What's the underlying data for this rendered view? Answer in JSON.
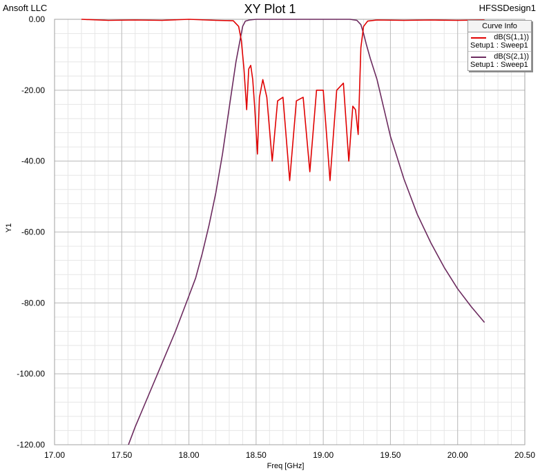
{
  "header": {
    "company": "Ansoft LLC",
    "title": "XY Plot 1",
    "design": "HFSSDesign1"
  },
  "legend": {
    "title": "Curve Info",
    "items": [
      {
        "name": "dB(S(1,1))",
        "setup": "Setup1 : Sweep1",
        "color": "#e00000"
      },
      {
        "name": "dB(S(2,1))",
        "setup": "Setup1 : Sweep1",
        "color": "#6b2a5e"
      }
    ]
  },
  "chart_data": {
    "type": "line",
    "title": "XY Plot 1",
    "xlabel": "Freq [GHz]",
    "ylabel": "Y1",
    "xlim": [
      17.0,
      20.5
    ],
    "ylim": [
      -120,
      0
    ],
    "grid": true,
    "legend_position": "top-right",
    "x_ticks": [
      "17.00",
      "17.50",
      "18.00",
      "18.50",
      "19.00",
      "19.50",
      "20.00",
      "20.50"
    ],
    "y_ticks": [
      "0.00",
      "-20.00",
      "-40.00",
      "-60.00",
      "-80.00",
      "-100.00",
      "-120.00"
    ],
    "series": [
      {
        "name": "dB(S(1,1))",
        "color": "#e00000",
        "x": [
          17.2,
          17.4,
          17.6,
          17.8,
          18.0,
          18.2,
          18.33,
          18.37,
          18.39,
          18.41,
          18.43,
          18.445,
          18.46,
          18.475,
          18.49,
          18.51,
          18.525,
          18.55,
          18.58,
          18.62,
          18.66,
          18.7,
          18.75,
          18.8,
          18.85,
          18.9,
          18.95,
          19.0,
          19.05,
          19.1,
          19.15,
          19.19,
          19.22,
          19.24,
          19.26,
          19.28,
          19.3,
          19.33,
          19.4,
          19.6,
          19.8,
          20.0,
          20.2
        ],
        "y": [
          0.0,
          -0.3,
          -0.2,
          -0.3,
          0.0,
          -0.3,
          -0.4,
          -2.0,
          -6.0,
          -14.0,
          -25.5,
          -14.0,
          -13.0,
          -17.0,
          -25.0,
          -38.0,
          -22.0,
          -17.0,
          -22.0,
          -40.0,
          -23.0,
          -22.0,
          -45.5,
          -23.0,
          -22.0,
          -43.0,
          -20.0,
          -20.0,
          -45.5,
          -20.0,
          -18.0,
          -40.0,
          -24.5,
          -25.5,
          -32.5,
          -8.0,
          -2.0,
          -0.5,
          -0.2,
          -0.3,
          -0.2,
          -0.3,
          -0.2
        ]
      },
      {
        "name": "dB(S(2,1))",
        "color": "#6b2a5e",
        "x": [
          17.55,
          17.6,
          17.7,
          17.8,
          17.9,
          18.0,
          18.05,
          18.1,
          18.15,
          18.2,
          18.25,
          18.3,
          18.35,
          18.38,
          18.4,
          18.42,
          18.45,
          18.5,
          19.0,
          19.2,
          19.25,
          19.28,
          19.3,
          19.32,
          19.35,
          19.4,
          19.45,
          19.5,
          19.55,
          19.6,
          19.7,
          19.8,
          19.9,
          20.0,
          20.1,
          20.2
        ],
        "y": [
          -120.0,
          -115.0,
          -106.0,
          -97.0,
          -88.0,
          -78.0,
          -73.0,
          -66.0,
          -58.0,
          -49.0,
          -38.0,
          -25.0,
          -12.0,
          -6.0,
          -2.0,
          -0.5,
          -0.2,
          0.0,
          0.0,
          0.0,
          -0.3,
          -1.5,
          -4.0,
          -7.0,
          -11.0,
          -17.0,
          -25.0,
          -33.0,
          -39.0,
          -45.0,
          -55.0,
          -63.0,
          -70.0,
          -76.0,
          -81.0,
          -85.5
        ]
      }
    ]
  }
}
